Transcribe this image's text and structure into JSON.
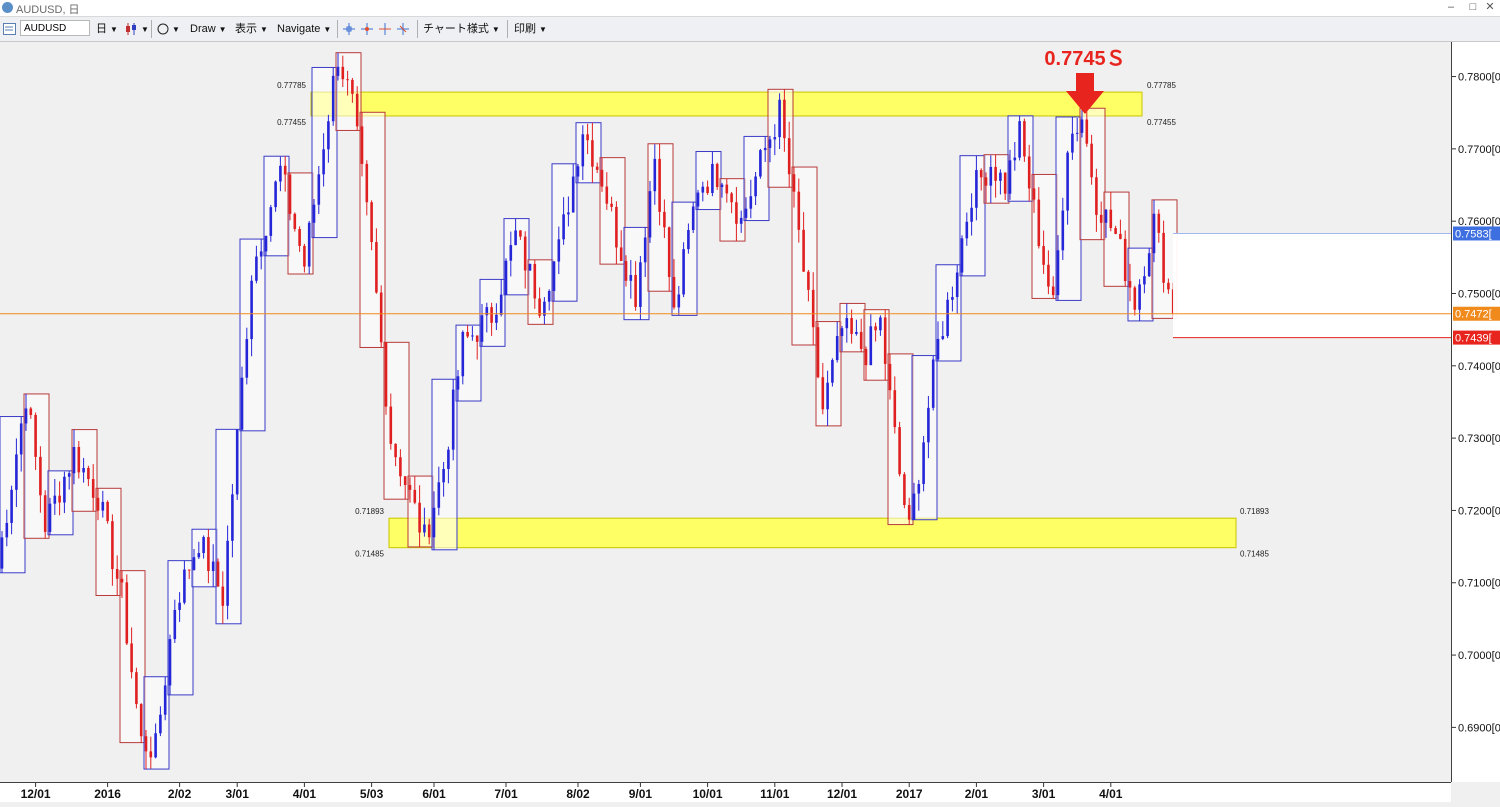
{
  "window": {
    "title": "AUDUSD, 日",
    "controls": [
      "–",
      "□",
      "✕"
    ]
  },
  "toolbar": {
    "symbol": "AUDUSD",
    "timeframe": "日",
    "draw": "Draw",
    "display": "表示",
    "navigate": "Navigate",
    "chart_style": "チャート様式",
    "print": "印刷"
  },
  "annotation": {
    "label": "0.7745Ｓ",
    "color": "#e8241e"
  },
  "zones": {
    "upper": {
      "top_label": "0.77785",
      "bottom_label": "0.77455",
      "top": 0.77785,
      "bottom": 0.77455
    },
    "lower": {
      "top_label": "0.71893",
      "bottom_label": "0.71485",
      "top": 0.71893,
      "bottom": 0.71485
    }
  },
  "price_tags": [
    {
      "text": "0.7583[",
      "value": 0.7583,
      "color": "#3d6fe0"
    },
    {
      "text": "0.7472[",
      "value": 0.7472,
      "color": "#f08a1c"
    },
    {
      "text": "0.7439[",
      "value": 0.7439,
      "color": "#e8241e"
    }
  ],
  "chart_data": {
    "type": "candlestick",
    "symbol": "AUDUSD",
    "timeframe": "日",
    "ylim": [
      0.683,
      0.7845
    ],
    "y_ticks": [
      "0.7800[0",
      "0.7700[0",
      "0.7600[0",
      "0.7500[0",
      "0.7400[0",
      "0.7300[0",
      "0.7200[0",
      "0.7100[0",
      "0.7000[0",
      "0.6900[0"
    ],
    "y_tick_values": [
      0.78,
      0.77,
      0.76,
      0.75,
      0.74,
      0.73,
      0.72,
      0.71,
      0.7,
      0.69
    ],
    "x_ticks": [
      "12/01",
      "2016",
      "2/02",
      "3/01",
      "4/01",
      "5/03",
      "6/01",
      "7/01",
      "8/02",
      "9/01",
      "10/01",
      "11/01",
      "12/01",
      "2017",
      "2/01",
      "3/01",
      "4/01"
    ],
    "x_tick_bars": [
      7,
      22,
      37,
      49,
      63,
      77,
      90,
      105,
      120,
      133,
      147,
      161,
      175,
      189,
      203,
      217,
      231
    ],
    "num_bars": 245,
    "current_price": 0.7472,
    "anchors": [
      [
        0,
        0.712
      ],
      [
        6,
        0.736
      ],
      [
        10,
        0.718
      ],
      [
        16,
        0.728
      ],
      [
        21,
        0.722
      ],
      [
        26,
        0.708
      ],
      [
        30,
        0.688
      ],
      [
        33,
        0.687
      ],
      [
        37,
        0.707
      ],
      [
        42,
        0.716
      ],
      [
        47,
        0.708
      ],
      [
        50,
        0.73
      ],
      [
        53,
        0.753
      ],
      [
        59,
        0.767
      ],
      [
        64,
        0.754
      ],
      [
        68,
        0.771
      ],
      [
        71,
        0.783
      ],
      [
        74,
        0.776
      ],
      [
        78,
        0.756
      ],
      [
        82,
        0.73
      ],
      [
        86,
        0.722
      ],
      [
        89,
        0.716
      ],
      [
        93,
        0.726
      ],
      [
        97,
        0.743
      ],
      [
        103,
        0.747
      ],
      [
        108,
        0.758
      ],
      [
        113,
        0.749
      ],
      [
        117,
        0.756
      ],
      [
        122,
        0.773
      ],
      [
        126,
        0.766
      ],
      [
        129,
        0.758
      ],
      [
        133,
        0.75
      ],
      [
        137,
        0.769
      ],
      [
        141,
        0.747
      ],
      [
        146,
        0.765
      ],
      [
        151,
        0.767
      ],
      [
        155,
        0.76
      ],
      [
        160,
        0.77
      ],
      [
        163,
        0.775
      ],
      [
        167,
        0.758
      ],
      [
        172,
        0.734
      ],
      [
        176,
        0.745
      ],
      [
        181,
        0.742
      ],
      [
        184,
        0.746
      ],
      [
        188,
        0.725
      ],
      [
        190,
        0.717
      ],
      [
        193,
        0.73
      ],
      [
        196,
        0.743
      ],
      [
        199,
        0.751
      ],
      [
        203,
        0.764
      ],
      [
        207,
        0.768
      ],
      [
        210,
        0.765
      ],
      [
        213,
        0.772
      ],
      [
        217,
        0.758
      ],
      [
        220,
        0.748
      ],
      [
        223,
        0.771
      ],
      [
        226,
        0.7745
      ],
      [
        229,
        0.763
      ],
      [
        233,
        0.758
      ],
      [
        237,
        0.749
      ],
      [
        241,
        0.76
      ],
      [
        245,
        0.7472
      ]
    ]
  }
}
